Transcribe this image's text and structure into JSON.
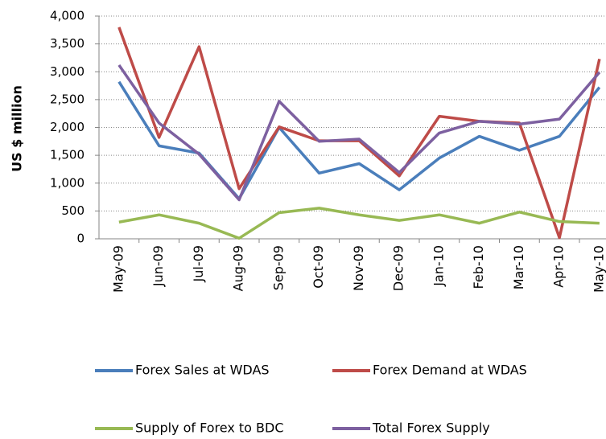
{
  "chart_data": {
    "type": "line",
    "y_label": "US $ million",
    "categories": [
      "May-09",
      "Jun-09",
      "Jul-09",
      "Aug-09",
      "Sep-09",
      "Oct-09",
      "Nov-09",
      "Dec-09",
      "Jan-10",
      "Feb-10",
      "Mar-10",
      "Apr-10",
      "May-10"
    ],
    "series": [
      {
        "name": "Forex Sales at WDAS",
        "color": "#4a7ebb",
        "values": [
          2820,
          1670,
          1540,
          720,
          2000,
          1180,
          1350,
          880,
          1450,
          1840,
          1590,
          1840,
          2720
        ]
      },
      {
        "name": "Forex Demand at WDAS",
        "color": "#be4b48",
        "values": [
          3800,
          1820,
          3450,
          900,
          2010,
          1760,
          1760,
          1130,
          2200,
          2110,
          2080,
          20,
          3230
        ]
      },
      {
        "name": "Supply of Forex to BDC",
        "color": "#98b954",
        "values": [
          300,
          430,
          280,
          10,
          470,
          550,
          430,
          330,
          430,
          280,
          480,
          310,
          280
        ]
      },
      {
        "name": "Total Forex Supply",
        "color": "#7d60a0",
        "values": [
          3120,
          2080,
          1520,
          700,
          2470,
          1750,
          1790,
          1190,
          1900,
          2110,
          2060,
          2150,
          2990
        ]
      }
    ],
    "ylim": [
      0,
      4000
    ],
    "yticks": [
      0,
      500,
      {
        "value": 1000,
        "label": "1,000"
      },
      {
        "value": 1500,
        "label": "1,500"
      },
      {
        "value": 2000,
        "label": "2,000"
      },
      {
        "value": 2500,
        "label": "2,500"
      },
      {
        "value": 3000,
        "label": "3,000"
      },
      {
        "value": 3500,
        "label": "3,500"
      },
      {
        "value": 4000,
        "label": "4,000"
      }
    ],
    "grid": true
  }
}
